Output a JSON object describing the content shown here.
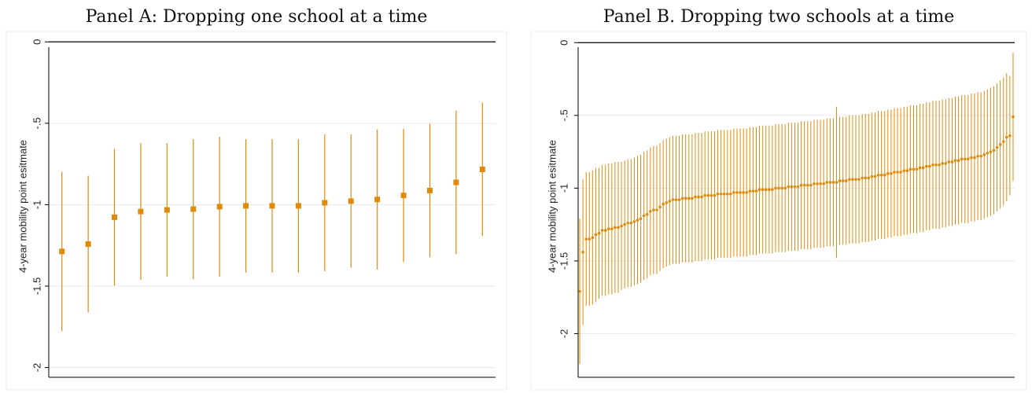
{
  "chart_data": [
    {
      "type": "errorbar",
      "title": "Panel A: Dropping one school at a time",
      "y_label": "4-year mobility point esitmate",
      "marker": "square",
      "color": "#e08a0b",
      "grid": true,
      "ylim": [
        -2.06,
        0.04
      ],
      "yticks": [
        0,
        {
          "value": -0.5,
          "label": "-.5"
        },
        -1,
        -1.5,
        -2
      ],
      "values": [
        -1.287,
        -1.242,
        -1.077,
        -1.042,
        -1.032,
        -1.027,
        -1.012,
        -1.007,
        -1.007,
        -1.007,
        -0.988,
        -0.978,
        -0.968,
        -0.943,
        -0.913,
        -0.863,
        -0.783
      ],
      "errors": [
        0.49,
        0.42,
        0.42,
        0.42,
        0.41,
        0.43,
        0.43,
        0.41,
        0.41,
        0.41,
        0.42,
        0.41,
        0.43,
        0.41,
        0.41,
        0.44,
        0.41
      ]
    },
    {
      "type": "errorbar",
      "title": "Panel B. Dropping two schools at a time",
      "y_label": "4-year mobility point esitmate",
      "marker": "circle",
      "color": "#e08a0b",
      "grid": true,
      "ylim": [
        -2.3,
        0.05
      ],
      "yticks": [
        0,
        {
          "value": -0.5,
          "label": "-.5"
        },
        -1,
        -1.5,
        -2
      ],
      "values": [
        -1.71,
        -1.44,
        -1.35,
        -1.35,
        -1.34,
        -1.32,
        -1.31,
        -1.29,
        -1.29,
        -1.28,
        -1.28,
        -1.27,
        -1.27,
        -1.26,
        -1.25,
        -1.24,
        -1.24,
        -1.23,
        -1.22,
        -1.21,
        -1.19,
        -1.18,
        -1.16,
        -1.15,
        -1.15,
        -1.13,
        -1.11,
        -1.1,
        -1.09,
        -1.08,
        -1.08,
        -1.08,
        -1.07,
        -1.07,
        -1.07,
        -1.07,
        -1.06,
        -1.06,
        -1.06,
        -1.05,
        -1.05,
        -1.05,
        -1.05,
        -1.04,
        -1.04,
        -1.04,
        -1.04,
        -1.04,
        -1.03,
        -1.03,
        -1.03,
        -1.03,
        -1.03,
        -1.02,
        -1.02,
        -1.02,
        -1.01,
        -1.01,
        -1.01,
        -1.01,
        -1.01,
        -1.0,
        -1.0,
        -1.0,
        -1.0,
        -0.99,
        -0.99,
        -0.99,
        -0.99,
        -0.98,
        -0.98,
        -0.98,
        -0.98,
        -0.97,
        -0.97,
        -0.97,
        -0.97,
        -0.96,
        -0.96,
        -0.96,
        -0.96,
        -0.95,
        -0.95,
        -0.95,
        -0.94,
        -0.94,
        -0.94,
        -0.94,
        -0.93,
        -0.93,
        -0.93,
        -0.92,
        -0.92,
        -0.91,
        -0.91,
        -0.91,
        -0.9,
        -0.9,
        -0.89,
        -0.89,
        -0.89,
        -0.88,
        -0.88,
        -0.87,
        -0.87,
        -0.87,
        -0.86,
        -0.86,
        -0.85,
        -0.85,
        -0.84,
        -0.84,
        -0.84,
        -0.83,
        -0.83,
        -0.82,
        -0.82,
        -0.81,
        -0.81,
        -0.8,
        -0.8,
        -0.8,
        -0.79,
        -0.79,
        -0.78,
        -0.78,
        -0.77,
        -0.76,
        -0.75,
        -0.74,
        -0.72,
        -0.7,
        -0.68,
        -0.65,
        -0.64,
        -0.51
      ],
      "errors": [
        0.5,
        0.5,
        0.46,
        0.46,
        0.46,
        0.46,
        0.45,
        0.45,
        0.45,
        0.45,
        0.45,
        0.45,
        0.45,
        0.44,
        0.44,
        0.44,
        0.44,
        0.44,
        0.44,
        0.44,
        0.44,
        0.44,
        0.44,
        0.44,
        0.44,
        0.44,
        0.44,
        0.44,
        0.44,
        0.44,
        0.44,
        0.44,
        0.44,
        0.44,
        0.44,
        0.44,
        0.44,
        0.44,
        0.44,
        0.44,
        0.44,
        0.44,
        0.44,
        0.44,
        0.44,
        0.44,
        0.44,
        0.44,
        0.44,
        0.44,
        0.44,
        0.44,
        0.44,
        0.44,
        0.44,
        0.44,
        0.44,
        0.44,
        0.44,
        0.44,
        0.44,
        0.44,
        0.44,
        0.44,
        0.44,
        0.44,
        0.44,
        0.44,
        0.44,
        0.44,
        0.44,
        0.44,
        0.44,
        0.44,
        0.44,
        0.44,
        0.44,
        0.44,
        0.44,
        0.44,
        0.52,
        0.44,
        0.44,
        0.44,
        0.44,
        0.44,
        0.44,
        0.44,
        0.44,
        0.44,
        0.44,
        0.44,
        0.44,
        0.44,
        0.44,
        0.44,
        0.44,
        0.44,
        0.44,
        0.44,
        0.44,
        0.44,
        0.44,
        0.44,
        0.44,
        0.44,
        0.44,
        0.44,
        0.44,
        0.44,
        0.44,
        0.44,
        0.44,
        0.44,
        0.44,
        0.44,
        0.44,
        0.44,
        0.44,
        0.44,
        0.44,
        0.44,
        0.44,
        0.44,
        0.44,
        0.44,
        0.44,
        0.44,
        0.44,
        0.44,
        0.44,
        0.44,
        0.44,
        0.44,
        0.41,
        0.44
      ]
    }
  ]
}
